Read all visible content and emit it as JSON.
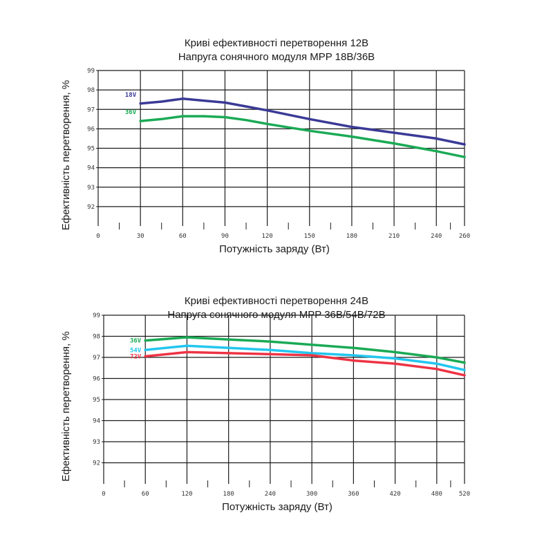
{
  "chart_data": [
    {
      "type": "line",
      "title": "Криві ефективності перетворення 12В",
      "subtitle": "Напруга сонячного модуля MPP 18В/36В",
      "xlabel": "Потужність заряду (Вт)",
      "ylabel": "Ефективність перетворення, %",
      "xlim": [
        0,
        260
      ],
      "ylim": [
        91,
        99
      ],
      "x_ticks": [
        "0",
        "30",
        "60",
        "90",
        "120",
        "150",
        "180",
        "210",
        "240",
        "260"
      ],
      "y_ticks": [
        "92",
        "93",
        "94",
        "95",
        "96",
        "97",
        "98",
        "99"
      ],
      "grid": true,
      "series": [
        {
          "name": "18V",
          "color": "#3a3a96",
          "x": [
            30,
            45,
            60,
            75,
            90,
            105,
            120,
            150,
            180,
            210,
            240,
            260
          ],
          "y": [
            97.3,
            97.4,
            97.55,
            97.45,
            97.35,
            97.15,
            96.95,
            96.5,
            96.1,
            95.8,
            95.5,
            95.2
          ]
        },
        {
          "name": "36V",
          "color": "#1aaa55",
          "x": [
            30,
            45,
            60,
            75,
            90,
            105,
            120,
            150,
            180,
            210,
            240,
            260
          ],
          "y": [
            96.4,
            96.5,
            96.65,
            96.65,
            96.6,
            96.45,
            96.25,
            95.9,
            95.6,
            95.25,
            94.85,
            94.55
          ]
        }
      ]
    },
    {
      "type": "line",
      "title": "Криві ефективності перетворення 24В",
      "subtitle": "Напруга сонячного модуля MPP 36В/54В/72В",
      "xlabel": "Потужність заряду (Вт)",
      "ylabel": "Ефективність перетворення, %",
      "xlim": [
        0,
        520
      ],
      "ylim": [
        91,
        99
      ],
      "x_ticks": [
        "0",
        "60",
        "120",
        "180",
        "240",
        "300",
        "360",
        "420",
        "480",
        "520"
      ],
      "y_ticks": [
        "92",
        "93",
        "94",
        "95",
        "96",
        "97",
        "98",
        "99"
      ],
      "grid": true,
      "series": [
        {
          "name": "36V",
          "color": "#1aaa55",
          "x": [
            60,
            120,
            180,
            240,
            300,
            360,
            420,
            480,
            520
          ],
          "y": [
            97.8,
            97.95,
            97.85,
            97.75,
            97.6,
            97.45,
            97.25,
            97.0,
            96.75
          ]
        },
        {
          "name": "54V",
          "color": "#22c6ee",
          "x": [
            60,
            120,
            180,
            240,
            300,
            360,
            420,
            480,
            520
          ],
          "y": [
            97.35,
            97.55,
            97.45,
            97.35,
            97.2,
            97.1,
            96.95,
            96.7,
            96.4
          ]
        },
        {
          "name": "72V",
          "color": "#ee3344",
          "x": [
            60,
            120,
            180,
            240,
            300,
            360,
            420,
            480,
            520
          ],
          "y": [
            97.05,
            97.25,
            97.2,
            97.15,
            97.1,
            96.85,
            96.7,
            96.45,
            96.15
          ]
        }
      ]
    }
  ]
}
